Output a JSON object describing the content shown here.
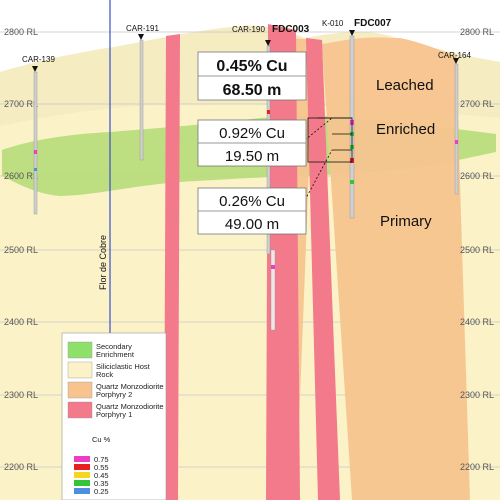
{
  "elevation_labels": [
    "2800 RL",
    "2700 RL",
    "2600 RL",
    "2500 RL",
    "2400 RL",
    "2300 RL",
    "2200 RL"
  ],
  "drillholes": {
    "car139": "CAR-139",
    "car191": "CAR-191",
    "car190": "CAR-190",
    "fdc003": "FDC003",
    "k010": "K-010",
    "fdc007": "FDC007",
    "car164": "CAR-164"
  },
  "fault_label": "Flor de Cobre",
  "zones": {
    "leached": "Leached",
    "enriched": "Enriched",
    "primary": "Primary"
  },
  "intercepts": [
    {
      "grade": "0.45% Cu",
      "length": "68.50 m"
    },
    {
      "grade": "0.92% Cu",
      "length": "19.50 m"
    },
    {
      "grade": "0.26% Cu",
      "length": "49.00 m"
    }
  ],
  "legend": {
    "items": [
      {
        "lines": [
          "Secondary",
          "Enrichment"
        ],
        "color": "#8ee06a"
      },
      {
        "lines": [
          "Siliciclastic Host",
          "Rock"
        ],
        "color": "#fbf2c8"
      },
      {
        "lines": [
          "Quartz Monzodiorite",
          "Porphyry 2"
        ],
        "color": "#f7c48f"
      },
      {
        "lines": [
          "Quartz Monzodiorite",
          "Porphyry 1"
        ],
        "color": "#f27a8a"
      }
    ],
    "cu_title": "Cu %",
    "cu_scale": [
      {
        "value": "0.75",
        "color": "#e83ec8"
      },
      {
        "value": "0.55",
        "color": "#e8211f"
      },
      {
        "value": "0.45",
        "color": "#f5d51e"
      },
      {
        "value": "0.35",
        "color": "#33c43a"
      },
      {
        "value": "0.25",
        "color": "#4b8fe0"
      }
    ]
  },
  "colors": {
    "host_rock": "#fbf2c8",
    "porphyry_2": "#f7c48f",
    "porphyry_1": "#f27a8a",
    "enrichment": "#b7dc7a",
    "fault": "#3a4fc8"
  }
}
